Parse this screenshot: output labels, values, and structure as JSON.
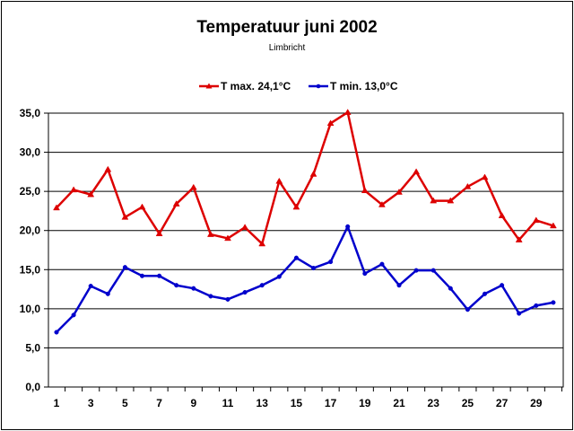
{
  "chart_data": {
    "type": "line",
    "title": "Temperatuur juni 2002",
    "subtitle": "Limbricht",
    "xlabel": "",
    "ylabel": "",
    "x": [
      1,
      2,
      3,
      4,
      5,
      6,
      7,
      8,
      9,
      10,
      11,
      12,
      13,
      14,
      15,
      16,
      17,
      18,
      19,
      20,
      21,
      22,
      23,
      24,
      25,
      26,
      27,
      28,
      29,
      30
    ],
    "x_tick_labels": [
      "1",
      "3",
      "5",
      "7",
      "9",
      "11",
      "13",
      "15",
      "17",
      "19",
      "21",
      "23",
      "25",
      "27",
      "29"
    ],
    "y_tick_labels": [
      "0,0",
      "5,0",
      "10,0",
      "15,0",
      "20,0",
      "25,0",
      "30,0",
      "35,0"
    ],
    "ylim": [
      0,
      35
    ],
    "grid": "horizontal",
    "legend_position": "top",
    "series": [
      {
        "name": "T max. 24,1°C",
        "color": "#dd0000",
        "marker": "triangle",
        "values": [
          22.9,
          25.2,
          24.6,
          27.8,
          21.7,
          23.0,
          19.6,
          23.4,
          25.5,
          19.5,
          19.0,
          20.4,
          18.3,
          26.3,
          23.0,
          27.2,
          33.7,
          35.1,
          25.1,
          23.3,
          24.9,
          27.5,
          23.8,
          23.8,
          25.6,
          26.8,
          21.9,
          18.8,
          21.3,
          20.6
        ]
      },
      {
        "name": "T min. 13,0°C",
        "color": "#0000cc",
        "marker": "circle",
        "values": [
          7.0,
          9.2,
          12.9,
          11.9,
          15.3,
          14.2,
          14.2,
          13.0,
          12.6,
          11.6,
          11.2,
          12.1,
          13.0,
          14.1,
          16.5,
          15.2,
          16.0,
          20.5,
          14.5,
          15.7,
          13.0,
          14.9,
          14.9,
          12.6,
          9.9,
          11.9,
          13.0,
          9.4,
          10.4,
          10.8
        ]
      }
    ]
  }
}
